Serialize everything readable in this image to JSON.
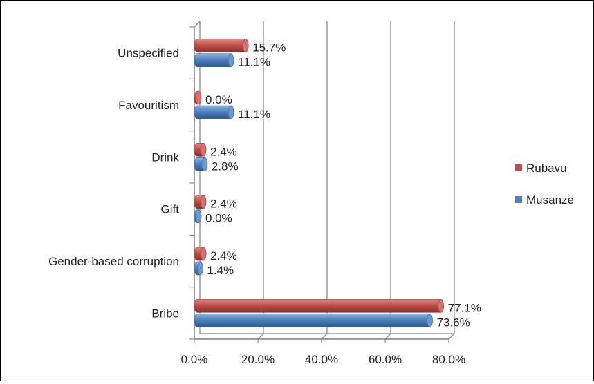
{
  "chart_data": {
    "type": "bar",
    "orientation": "horizontal",
    "categories": [
      "Unspecified",
      "Favouritism",
      "Drink",
      "Gift",
      "Gender-based corruption",
      "Bribe"
    ],
    "series": [
      {
        "name": "Rubavu",
        "values": [
          15.7,
          0.0,
          2.4,
          2.4,
          2.4,
          77.1
        ],
        "labels": [
          "15.7%",
          "0.0%",
          "2.4%",
          "2.4%",
          "2.4%",
          "77.1%"
        ]
      },
      {
        "name": "Musanze",
        "values": [
          11.1,
          11.1,
          2.8,
          0.0,
          1.4,
          73.6
        ],
        "labels": [
          "11.1%",
          "11.1%",
          "2.8%",
          "0.0%",
          "1.4%",
          "73.6%"
        ]
      }
    ],
    "xlim": [
      0,
      80
    ],
    "ticks": [
      "0.0%",
      "20.0%",
      "40.0%",
      "60.0%",
      "80.0%"
    ],
    "tick_values": [
      0,
      20,
      40,
      60,
      80
    ],
    "grid": "vertical",
    "legend": "right",
    "colors": {
      "Rubavu": "#c0504d",
      "Musanze": "#4f81bd"
    }
  }
}
